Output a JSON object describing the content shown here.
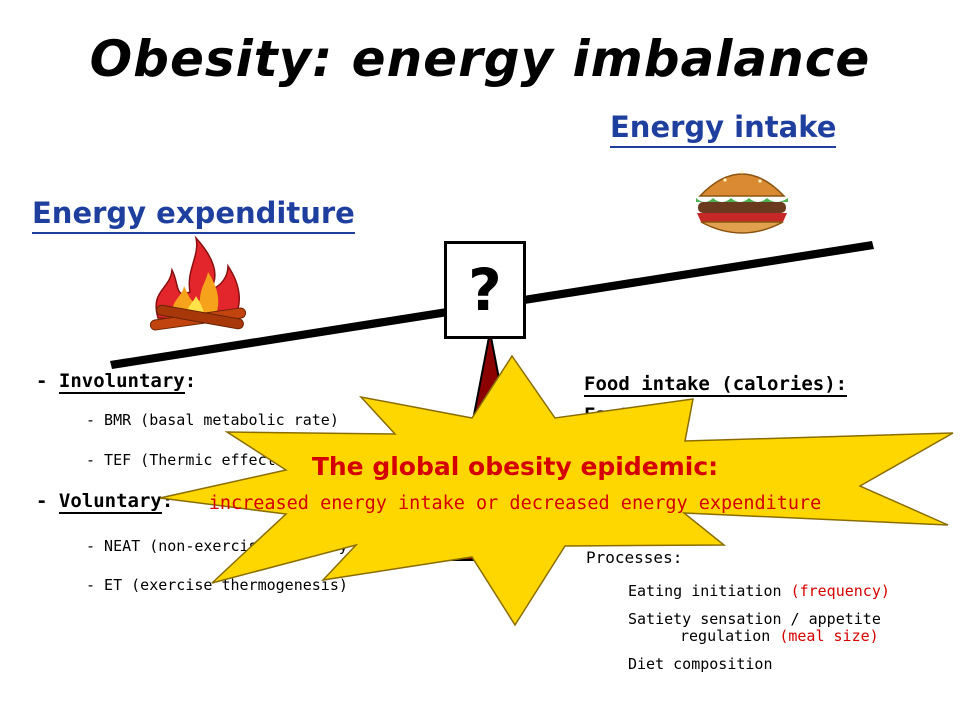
{
  "title": "Obesity: energy imbalance",
  "headings": {
    "intake": "Energy intake",
    "expenditure": "Energy expenditure"
  },
  "center_symbol": "?",
  "expenditure": {
    "involuntary": {
      "dash": "-",
      "label": "Involuntary",
      "colon": ":"
    },
    "bmr": "- BMR (basal metabolic rate)",
    "tef": "- TEF (Thermic effect of food)",
    "voluntary": {
      "dash": "-",
      "label": "Voluntary",
      "colon": ":"
    },
    "neat": "- NEAT (non-exercise activity thermogenesis)",
    "et": "- ET (exercise thermogenesis)"
  },
  "intake": {
    "food_intake": "Food intake (calories):",
    "factors_label": "Factors:",
    "processes_label": "Processes:",
    "eating_initiation": "Eating initiation",
    "frequency": "(frequency)",
    "satiety": "Satiety sensation / appetite",
    "regulation": "regulation",
    "meal_size": "(meal size)",
    "diet_composition": "Diet composition"
  },
  "burst": {
    "title": "The global obesity epidemic:",
    "subtitle": "increased energy intake or decreased energy expenditure"
  },
  "colors": {
    "heading_blue": "#1f3f9e",
    "accent_red": "#d40000",
    "burst_fill": "#ffd700",
    "fulcrum": "#8b0000"
  },
  "icons": [
    "fire-icon",
    "burger-icon"
  ]
}
